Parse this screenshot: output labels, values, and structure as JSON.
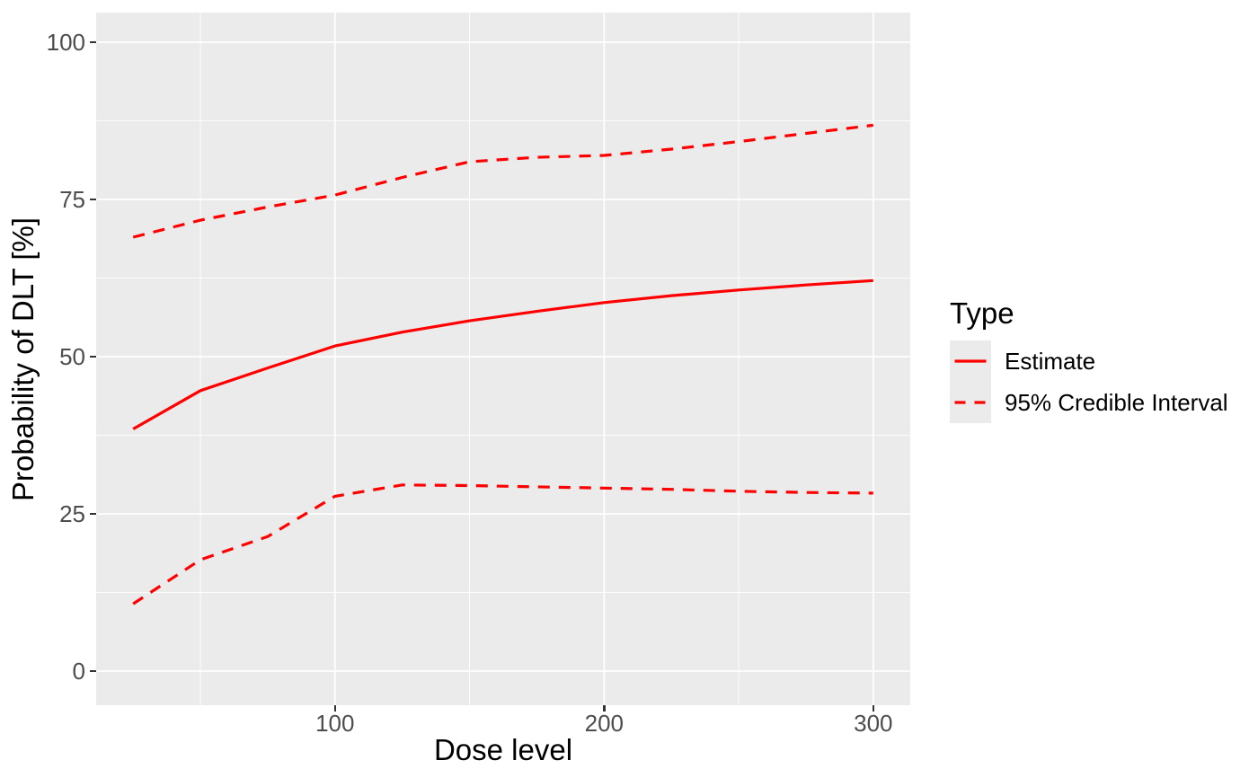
{
  "colors": {
    "accent": "#ff0000",
    "panel_background": "#ebebeb",
    "gridline": "#ffffff",
    "axis_tick_text": "#4d4d4d",
    "tick_mark": "#333333",
    "legend_key_background": "#ebebeb",
    "title_text": "#000000"
  },
  "legend": {
    "title": "Type",
    "items": [
      {
        "label": "Estimate",
        "style": "solid"
      },
      {
        "label": "95% Credible Interval",
        "style": "dashed"
      }
    ]
  },
  "chart_data": {
    "type": "line",
    "title": "",
    "xlabel": "Dose level",
    "ylabel": "Probability of DLT [%]",
    "x": [
      25,
      50,
      75,
      100,
      125,
      150,
      175,
      200,
      225,
      250,
      275,
      300
    ],
    "series": [
      {
        "name": "Estimate",
        "style": "solid",
        "values": [
          38.5,
          44.6,
          48.2,
          51.7,
          53.9,
          55.7,
          57.2,
          58.6,
          59.7,
          60.6,
          61.4,
          62.1
        ]
      },
      {
        "name": "95% Credible Interval upper",
        "style": "dashed",
        "values": [
          69.0,
          71.7,
          73.8,
          75.7,
          78.5,
          81.0,
          81.7,
          82.0,
          83.0,
          84.2,
          85.5,
          86.8
        ]
      },
      {
        "name": "95% Credible Interval lower",
        "style": "dashed",
        "values": [
          10.7,
          17.7,
          21.4,
          27.8,
          29.6,
          29.5,
          29.3,
          29.1,
          28.9,
          28.6,
          28.4,
          28.3
        ]
      }
    ],
    "x_ticks": [
      {
        "label": "100",
        "value": 100
      },
      {
        "label": "200",
        "value": 200
      },
      {
        "label": "300",
        "value": 300
      }
    ],
    "y_ticks": [
      {
        "label": "0",
        "value": 0
      },
      {
        "label": "25",
        "value": 25
      },
      {
        "label": "50",
        "value": 50
      },
      {
        "label": "75",
        "value": 75
      },
      {
        "label": "100",
        "value": 100
      }
    ],
    "x_minor_gridlines": [
      50,
      150,
      250
    ],
    "y_minor_gridlines": [
      12.5,
      37.5,
      62.5,
      87.5
    ],
    "x_domain": [
      11.25,
      313.75
    ],
    "y_domain": [
      -5.43,
      104.71
    ],
    "grid": true,
    "legend_position": "right"
  }
}
